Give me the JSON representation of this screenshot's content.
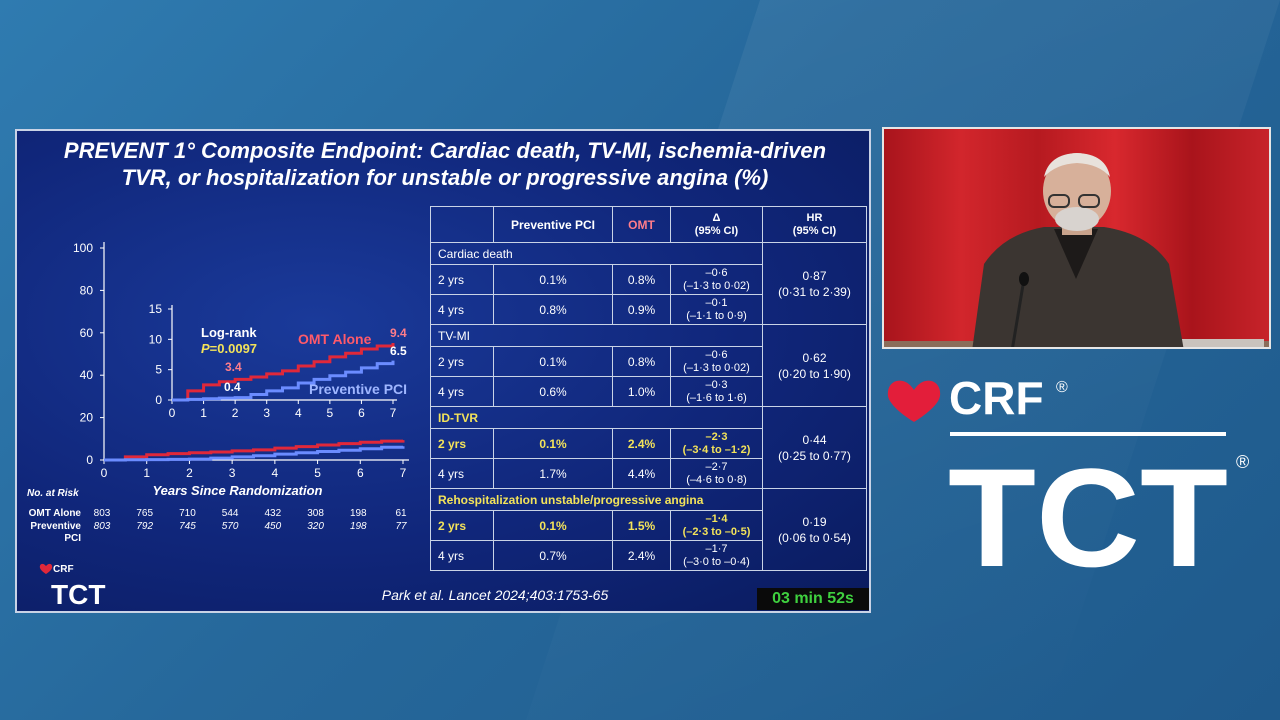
{
  "slide": {
    "title_line1": "PREVENT 1° Composite Endpoint: Cardiac death, TV-MI, ischemia-driven",
    "title_line2": "TVR, or hospitalization for unstable or progressive angina (%)",
    "citation": "Park et al. Lancet 2024;403:1753-65",
    "timer": "03 min 52s"
  },
  "colors": {
    "omt": "#e0283a",
    "pci": "#6b8cff",
    "highlight": "#f3e35a"
  },
  "chart_data": [
    {
      "type": "line",
      "xlabel": "Years Since Randomization",
      "ylabel": "",
      "xlim": [
        0,
        7
      ],
      "ylim": [
        0,
        100
      ],
      "x_ticks": [
        "0",
        "1",
        "2",
        "3",
        "4",
        "5",
        "6",
        "7"
      ],
      "y_ticks": [
        "0",
        "20",
        "40",
        "60",
        "80",
        "100"
      ],
      "series": [
        {
          "color": "#e0283a",
          "x": [
            0,
            0.5,
            1,
            1.5,
            2,
            2.5,
            3,
            3.5,
            4,
            4.5,
            5,
            5.5,
            6,
            6.5,
            7
          ],
          "y": [
            0,
            1.5,
            2.5,
            3.0,
            3.4,
            3.8,
            4.3,
            4.8,
            5.6,
            6.3,
            7.1,
            7.7,
            8.4,
            8.9,
            9.4
          ]
        },
        {
          "color": "#6b8cff",
          "x": [
            0,
            0.5,
            1,
            1.5,
            2,
            2.5,
            3,
            3.5,
            4,
            4.5,
            5,
            5.5,
            6,
            6.5,
            7
          ],
          "y": [
            0,
            0.1,
            0.2,
            0.3,
            0.4,
            0.9,
            1.5,
            2.0,
            2.8,
            3.4,
            4.0,
            4.6,
            5.3,
            6.0,
            6.5
          ]
        }
      ],
      "risk_table": {
        "title": "No. at Risk",
        "rows": [
          {
            "label": "OMT Alone",
            "values": [
              "803",
              "765",
              "710",
              "544",
              "432",
              "308",
              "198",
              "61"
            ]
          },
          {
            "label": "Preventive\nPCI",
            "values": [
              "803",
              "792",
              "745",
              "570",
              "450",
              "320",
              "198",
              "77"
            ]
          }
        ]
      }
    },
    {
      "type": "line",
      "xlabel": "",
      "ylabel": "",
      "xlim": [
        0,
        7
      ],
      "ylim": [
        0,
        15
      ],
      "x_ticks": [
        "0",
        "1",
        "2",
        "3",
        "4",
        "5",
        "6",
        "7"
      ],
      "y_ticks": [
        "0",
        "5",
        "10",
        "15"
      ],
      "series": [
        {
          "name": "OMT Alone",
          "color": "#e0283a",
          "x": [
            0,
            0.5,
            1,
            1.5,
            2,
            2.5,
            3,
            3.5,
            4,
            4.5,
            5,
            5.5,
            6,
            6.5,
            7
          ],
          "y": [
            0,
            1.5,
            2.5,
            3.0,
            3.4,
            3.8,
            4.3,
            4.8,
            5.6,
            6.3,
            7.1,
            7.7,
            8.4,
            8.9,
            9.4
          ]
        },
        {
          "name": "Preventive PCI",
          "color": "#6b8cff",
          "x": [
            0,
            0.5,
            1,
            1.5,
            2,
            2.5,
            3,
            3.5,
            4,
            4.5,
            5,
            5.5,
            6,
            6.5,
            7
          ],
          "y": [
            0,
            0.1,
            0.2,
            0.3,
            0.4,
            0.9,
            1.5,
            2.0,
            2.8,
            3.4,
            4.0,
            4.6,
            5.3,
            6.0,
            6.5
          ]
        }
      ],
      "annotations": {
        "logrank": "Log-rank",
        "p_italic": "P",
        "p_value": "=0.0097",
        "omt_2yr": "3.4",
        "pci_2yr": "0.4",
        "omt_end": "9.4",
        "pci_end": "6.5"
      }
    }
  ],
  "table": {
    "headers": {
      "blank": "",
      "pci": "Preventive PCI",
      "omt": "OMT",
      "delta": "Δ",
      "delta_ci": "(95% CI)",
      "hr": "HR",
      "hr_ci": "(95% CI)"
    },
    "sections": [
      {
        "label": "Cardiac death",
        "highlight": false,
        "hr": "0·87",
        "hr_ci": "(0·31 to 2·39)",
        "rows": [
          {
            "label": "2 yrs",
            "pci": "0.1%",
            "omt": "0.8%",
            "delta": "–0·6",
            "delta_ci": "(–1·3 to 0·02)",
            "highlight": false
          },
          {
            "label": "4 yrs",
            "pci": "0.8%",
            "omt": "0.9%",
            "delta": "–0·1",
            "delta_ci": "(–1·1 to 0·9)",
            "highlight": false
          }
        ]
      },
      {
        "label": "TV-MI",
        "highlight": false,
        "hr": "0·62",
        "hr_ci": "(0·20 to 1·90)",
        "rows": [
          {
            "label": "2 yrs",
            "pci": "0.1%",
            "omt": "0.8%",
            "delta": "–0·6",
            "delta_ci": "(–1·3 to 0·02)",
            "highlight": false
          },
          {
            "label": "4 yrs",
            "pci": "0.6%",
            "omt": "1.0%",
            "delta": "–0·3",
            "delta_ci": "(–1·6 to 1·6)",
            "highlight": false
          }
        ]
      },
      {
        "label": "ID-TVR",
        "highlight": true,
        "hr": "0·44",
        "hr_ci": "(0·25 to 0·77)",
        "rows": [
          {
            "label": "2 yrs",
            "pci": "0.1%",
            "omt": "2.4%",
            "delta": "–2·3",
            "delta_ci": "(–3·4 to –1·2)",
            "highlight": true
          },
          {
            "label": "4 yrs",
            "pci": "1.7%",
            "omt": "4.4%",
            "delta": "–2·7",
            "delta_ci": "(–4·6 to 0·8)",
            "highlight": false
          }
        ]
      },
      {
        "label": "Rehospitalization unstable/progressive angina",
        "highlight": true,
        "hr": "0·19",
        "hr_ci": "(0·06 to 0·54)",
        "rows": [
          {
            "label": "2 yrs",
            "pci": "0.1%",
            "omt": "1.5%",
            "delta": "–1·4",
            "delta_ci": "(–2·3 to –0·5)",
            "highlight": true
          },
          {
            "label": "4 yrs",
            "pci": "0.7%",
            "omt": "2.4%",
            "delta": "–1·7",
            "delta_ci": "(–3·0 to –0·4)",
            "highlight": false
          }
        ]
      }
    ]
  },
  "slide_logo": {
    "crf": "CRF",
    "tct": "TCT",
    "reg": "®"
  },
  "brand": {
    "crf": "CRF",
    "tct": "TCT",
    "reg": "®"
  }
}
